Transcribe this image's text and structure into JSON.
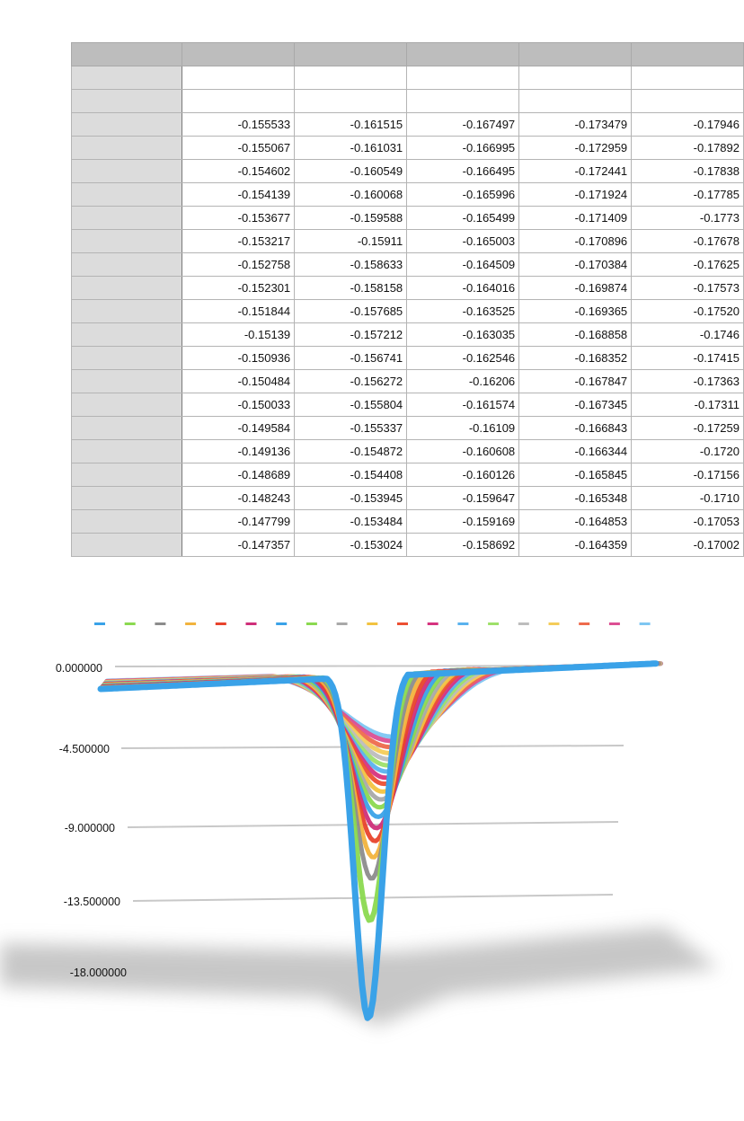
{
  "table": {
    "rows": [
      [
        "-0.155533",
        "-0.161515",
        "-0.167497",
        "-0.173479",
        "-0.17946"
      ],
      [
        "-0.155067",
        "-0.161031",
        "-0.166995",
        "-0.172959",
        "-0.17892"
      ],
      [
        "-0.154602",
        "-0.160549",
        "-0.166495",
        "-0.172441",
        "-0.17838"
      ],
      [
        "-0.154139",
        "-0.160068",
        "-0.165996",
        "-0.171924",
        "-0.17785"
      ],
      [
        "-0.153677",
        "-0.159588",
        "-0.165499",
        "-0.171409",
        "-0.1773"
      ],
      [
        "-0.153217",
        "-0.15911",
        "-0.165003",
        "-0.170896",
        "-0.17678"
      ],
      [
        "-0.152758",
        "-0.158633",
        "-0.164509",
        "-0.170384",
        "-0.17625"
      ],
      [
        "-0.152301",
        "-0.158158",
        "-0.164016",
        "-0.169874",
        "-0.17573"
      ],
      [
        "-0.151844",
        "-0.157685",
        "-0.163525",
        "-0.169365",
        "-0.17520"
      ],
      [
        "-0.15139",
        "-0.157212",
        "-0.163035",
        "-0.168858",
        "-0.1746"
      ],
      [
        "-0.150936",
        "-0.156741",
        "-0.162546",
        "-0.168352",
        "-0.17415"
      ],
      [
        "-0.150484",
        "-0.156272",
        "-0.16206",
        "-0.167847",
        "-0.17363"
      ],
      [
        "-0.150033",
        "-0.155804",
        "-0.161574",
        "-0.167345",
        "-0.17311"
      ],
      [
        "-0.149584",
        "-0.155337",
        "-0.16109",
        "-0.166843",
        "-0.17259"
      ],
      [
        "-0.149136",
        "-0.154872",
        "-0.160608",
        "-0.166344",
        "-0.1720"
      ],
      [
        "-0.148689",
        "-0.154408",
        "-0.160126",
        "-0.165845",
        "-0.17156"
      ],
      [
        "-0.148243",
        "-0.153945",
        "-0.159647",
        "-0.165348",
        "-0.1710"
      ],
      [
        "-0.147799",
        "-0.153484",
        "-0.159169",
        "-0.164853",
        "-0.17053"
      ],
      [
        "-0.147357",
        "-0.153024",
        "-0.158692",
        "-0.164359",
        "-0.17002"
      ]
    ]
  },
  "chart_data": {
    "type": "line",
    "ylim": [
      -18,
      0
    ],
    "yticks": [
      "0.000000",
      "-4.500000",
      "-9.000000",
      "-13.500000",
      "-18.000000"
    ],
    "legend_position": "top",
    "grid": true,
    "series_colors": [
      "#3aa2e8",
      "#8bd950",
      "#8c8c8c",
      "#f2b33d",
      "#e8432c",
      "#cf2f7a",
      "#3aa2e8",
      "#8bd950",
      "#a9a9a9",
      "#f2c340",
      "#ec4f33",
      "#d6337f",
      "#5ab2ee",
      "#9ee06a",
      "#bdbdbd",
      "#f4cc5a",
      "#ee6b4d",
      "#dc4f93",
      "#7ec6f2"
    ],
    "series_minima": [
      -20.5,
      -14.8,
      -12.4,
      -11.2,
      -10.3,
      -9.6,
      -9.0,
      -8.5,
      -8.1,
      -7.7,
      -7.3,
      -7.0,
      -6.7,
      -6.4,
      -6.1,
      -5.8,
      -5.5,
      -5.2,
      -5.0
    ]
  }
}
